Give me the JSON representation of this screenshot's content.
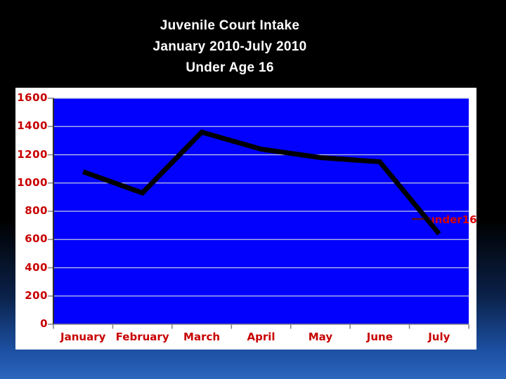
{
  "slide": {
    "title_lines": [
      "Juvenile Court Intake",
      "January 2010-July 2010",
      "Under Age 16"
    ]
  },
  "chart_data": {
    "type": "line",
    "title": "Juvenile Court Intake January 2010-July 2010 Under Age 16",
    "categories": [
      "January",
      "February",
      "March",
      "April",
      "May",
      "June",
      "July"
    ],
    "series": [
      {
        "name": "under16",
        "values": [
          1080,
          930,
          1360,
          1240,
          1180,
          1150,
          640
        ]
      }
    ],
    "xlabel": "",
    "ylabel": "",
    "ylim": [
      0,
      1600
    ],
    "yticks": [
      0,
      200,
      400,
      600,
      800,
      1000,
      1200,
      1400,
      1600
    ],
    "grid": true,
    "legend": {
      "label": "under16",
      "position": "right-inside"
    }
  },
  "colors": {
    "background_top": "#000000",
    "background_bottom": "#2B66BE",
    "title_text": "#FFFFFF",
    "panel_bg": "#FFFFFF",
    "plot_bg": "#0101FD",
    "gridline": "#C7CBDE",
    "axis": "#8A8A8A",
    "axis_dark": "#2B2B2B",
    "series_line": "#000000",
    "label_red": "#C80000",
    "legend_red": "#D80000",
    "legend_dash": "#5C1010"
  }
}
